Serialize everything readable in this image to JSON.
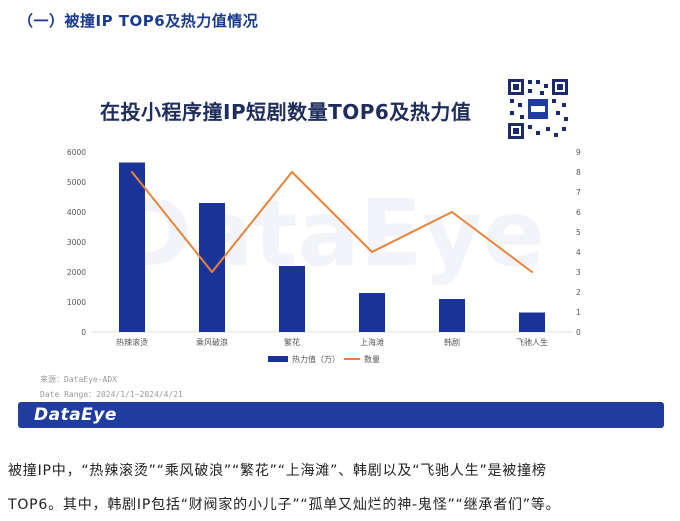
{
  "section_heading": "（一）被撞IP TOP6及热力值情况",
  "chart_title": "在投小程序撞IP短剧数量TOP6及热力值",
  "watermark": "DataEye",
  "source": "来源：DataEye-ADX",
  "date_range": "Date Range：2024/1/1~2024/4/21",
  "footer_logo": "DataEye",
  "paragraph_lines": [
    "被撞IP中，“热辣滚烫”“乘风破浪”“繁花”“上海滩”、韩剧以及“飞驰人生”是被撞榜",
    "TOP6。其中，韩剧IP包括“财阀家的小儿子”“孤单又灿烂的神-鬼怪”“继承者们”等。"
  ],
  "colors": {
    "bar": "#1a3399",
    "line": "#e8843a",
    "footer": "#1f3c9e",
    "heading": "#1a3a8f"
  },
  "chart_data": {
    "type": "bar+line",
    "categories": [
      "热辣滚烫",
      "乘风破浪",
      "繁花",
      "上海滩",
      "韩剧",
      "飞驰人生"
    ],
    "series": [
      {
        "name": "热力值（万）",
        "type": "bar",
        "axis": "left",
        "values": [
          5650,
          4300,
          2200,
          1300,
          1100,
          650
        ]
      },
      {
        "name": "数量",
        "type": "line",
        "axis": "right",
        "values": [
          8,
          3,
          8,
          4,
          6,
          3
        ]
      }
    ],
    "ylim_left": [
      0,
      6000
    ],
    "yticks_left": [
      "0",
      "1000",
      "2000",
      "3000",
      "4000",
      "5000",
      "6000"
    ],
    "ylim_right": [
      0,
      9
    ],
    "yticks_right": [
      "0",
      "1",
      "2",
      "3",
      "4",
      "5",
      "6",
      "7",
      "8",
      "9"
    ],
    "legend_position": "bottom",
    "grid": false
  }
}
